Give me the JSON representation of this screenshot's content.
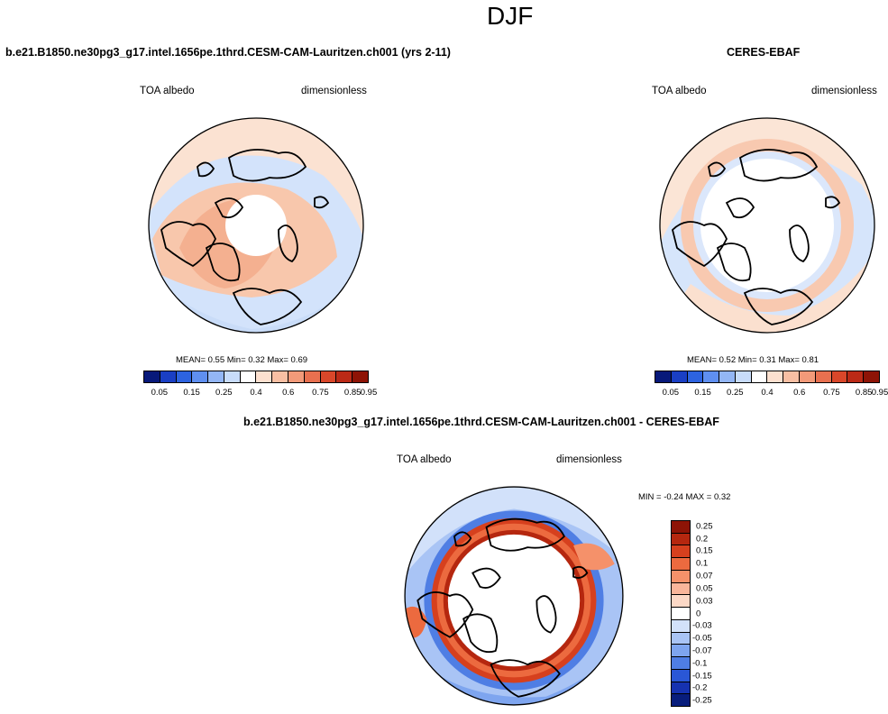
{
  "page_title": "DJF",
  "panel_test": {
    "case_title": "b.e21.B1850.ne30pg3_g17.intel.1656pe.1thrd.CESM-CAM-Lauritzen.ch001 (yrs 2-11)",
    "left_label": "TOA albedo",
    "right_label": "dimensionless",
    "stats": "MEAN=   0.55  Min=   0.32  Max=   0.69",
    "colorbar_ticks": [
      "0.05",
      "0.15",
      "0.25",
      "0.4",
      "0.6",
      "0.75",
      "0.85",
      "0.95"
    ]
  },
  "panel_obs": {
    "case_title": "CERES-EBAF",
    "left_label": "TOA albedo",
    "right_label": "dimensionless",
    "stats": "MEAN=   0.52  Min=   0.31  Max=   0.81",
    "colorbar_ticks": [
      "0.05",
      "0.15",
      "0.25",
      "0.4",
      "0.6",
      "0.75",
      "0.85",
      "0.95"
    ]
  },
  "panel_diff": {
    "case_title": "b.e21.B1850.ne30pg3_g17.intel.1656pe.1thrd.CESM-CAM-Lauritzen.ch001 - CERES-EBAF",
    "left_label": "TOA albedo",
    "right_label": "dimensionless",
    "stats": "MIN =  -0.24 MAX =   0.32",
    "colorbar_ticks": [
      "0.25",
      "0.2",
      "0.15",
      "0.1",
      "0.07",
      "0.05",
      "0.03",
      "0",
      "-0.03",
      "-0.05",
      "-0.07",
      "-0.1",
      "-0.15",
      "-0.2",
      "-0.25"
    ]
  },
  "colors": {
    "abs_scale": [
      "#08197a",
      "#1a3fc4",
      "#2d63e0",
      "#5f8ff0",
      "#93b6f5",
      "#c8dcfa",
      "#ffffff",
      "#fde0cf",
      "#f8bfa3",
      "#f29a79",
      "#e8704f",
      "#d9472a",
      "#bb2a16",
      "#8e1406"
    ],
    "diff_scale": [
      "#8e1406",
      "#b5270f",
      "#d6401e",
      "#ec6a3f",
      "#f5916a",
      "#f9b59a",
      "#fcd8c6",
      "#ffffff",
      "#d2e1fa",
      "#a9c4f5",
      "#7ea5ef",
      "#4f7ee4",
      "#2a57d6",
      "#1632b0",
      "#081d7c"
    ]
  }
}
